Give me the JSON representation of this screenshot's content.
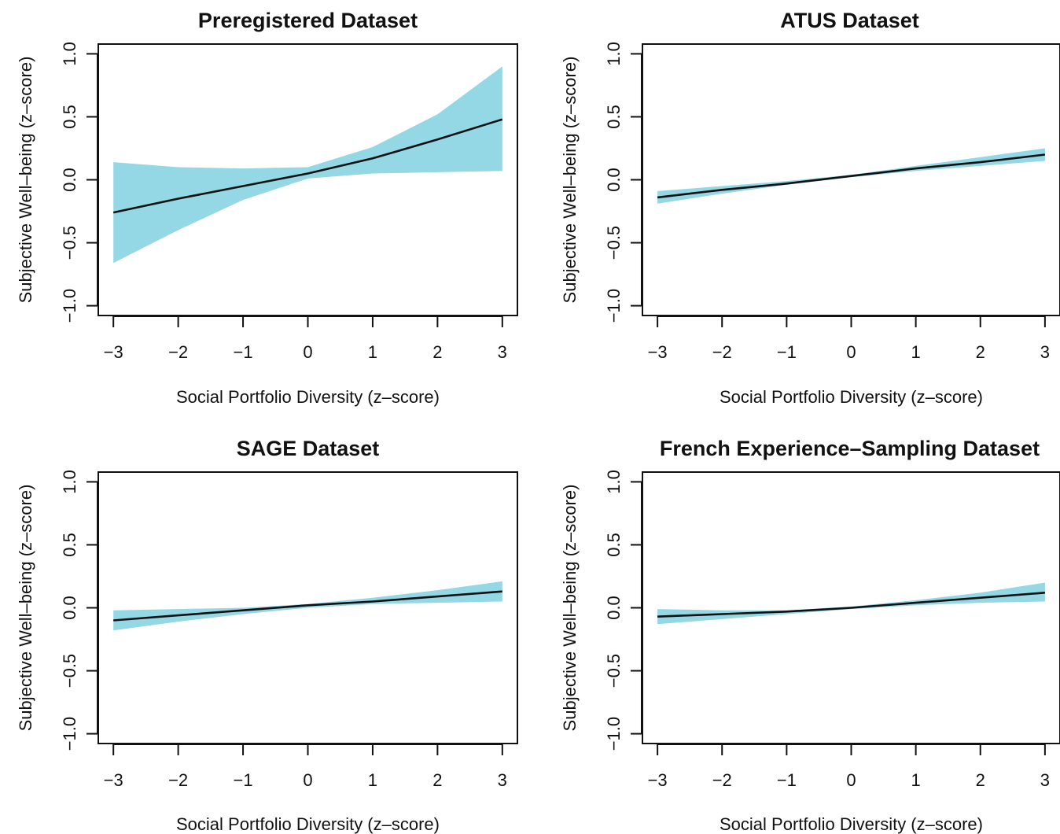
{
  "colors": {
    "band": "#94d7e5",
    "line": "#111111"
  },
  "chart_data": [
    {
      "type": "line",
      "title": "Preregistered Dataset",
      "xlabel": "Social Portfolio Diversity (z–score)",
      "ylabel": "Subjective Well–being (z–score)",
      "xlim": [
        -3,
        3
      ],
      "ylim": [
        -1,
        1
      ],
      "xticks": [
        -3,
        -2,
        -1,
        0,
        1,
        2,
        3
      ],
      "yticks": [
        -1.0,
        -0.5,
        0.0,
        0.5,
        1.0
      ],
      "xtick_labels": [
        "−3",
        "−2",
        "−1",
        "0",
        "1",
        "2",
        "3"
      ],
      "ytick_labels": [
        "−1.0",
        "−0.5",
        "0.0",
        "0.5",
        "1.0"
      ],
      "grid": false,
      "x": [
        -3,
        -2,
        -1,
        0,
        1,
        2,
        3
      ],
      "series": [
        {
          "y": [
            -0.26,
            -0.15,
            -0.05,
            0.05,
            0.17,
            0.32,
            0.48
          ],
          "lower": [
            -0.66,
            -0.4,
            -0.16,
            0.01,
            0.05,
            0.06,
            0.07
          ],
          "upper": [
            0.14,
            0.1,
            0.09,
            0.1,
            0.26,
            0.52,
            0.9
          ]
        }
      ]
    },
    {
      "type": "line",
      "title": "ATUS Dataset",
      "xlabel": "Social Portfolio Diversity (z–score)",
      "ylabel": "Subjective Well–being (z–score)",
      "xlim": [
        -3,
        3
      ],
      "ylim": [
        -1,
        1
      ],
      "xticks": [
        -3,
        -2,
        -1,
        0,
        1,
        2,
        3
      ],
      "yticks": [
        -1.0,
        -0.5,
        0.0,
        0.5,
        1.0
      ],
      "xtick_labels": [
        "−3",
        "−2",
        "−1",
        "0",
        "1",
        "2",
        "3"
      ],
      "ytick_labels": [
        "−1.0",
        "−0.5",
        "0.0",
        "0.5",
        "1.0"
      ],
      "grid": false,
      "x": [
        -3,
        -2,
        -1,
        0,
        1,
        2,
        3
      ],
      "series": [
        {
          "y": [
            -0.14,
            -0.08,
            -0.03,
            0.03,
            0.09,
            0.14,
            0.2
          ],
          "lower": [
            -0.19,
            -0.11,
            -0.04,
            0.02,
            0.07,
            0.11,
            0.15
          ],
          "upper": [
            -0.09,
            -0.05,
            -0.01,
            0.04,
            0.11,
            0.18,
            0.25
          ]
        }
      ]
    },
    {
      "type": "line",
      "title": "SAGE Dataset",
      "xlabel": "Social Portfolio Diversity (z–score)",
      "ylabel": "Subjective Well–being (z–score)",
      "xlim": [
        -3,
        3
      ],
      "ylim": [
        -1,
        1
      ],
      "xticks": [
        -3,
        -2,
        -1,
        0,
        1,
        2,
        3
      ],
      "yticks": [
        -1.0,
        -0.5,
        0.0,
        0.5,
        1.0
      ],
      "xtick_labels": [
        "−3",
        "−2",
        "−1",
        "0",
        "1",
        "2",
        "3"
      ],
      "ytick_labels": [
        "−1.0",
        "−0.5",
        "0.0",
        "0.5",
        "1.0"
      ],
      "grid": false,
      "x": [
        -3,
        -2,
        -1,
        0,
        1,
        2,
        3
      ],
      "series": [
        {
          "y": [
            -0.1,
            -0.06,
            -0.02,
            0.02,
            0.05,
            0.09,
            0.13
          ],
          "lower": [
            -0.18,
            -0.11,
            -0.05,
            0.0,
            0.03,
            0.04,
            0.05
          ],
          "upper": [
            -0.02,
            -0.01,
            0.0,
            0.03,
            0.08,
            0.14,
            0.21
          ]
        }
      ]
    },
    {
      "type": "line",
      "title": "French Experience–Sampling Dataset",
      "xlabel": "Social Portfolio Diversity (z–score)",
      "ylabel": "Subjective Well–being (z–score)",
      "xlim": [
        -3,
        3
      ],
      "ylim": [
        -1,
        1
      ],
      "xticks": [
        -3,
        -2,
        -1,
        0,
        1,
        2,
        3
      ],
      "yticks": [
        -1.0,
        -0.5,
        0.0,
        0.5,
        1.0
      ],
      "xtick_labels": [
        "−3",
        "−2",
        "−1",
        "0",
        "1",
        "2",
        "3"
      ],
      "ytick_labels": [
        "−1.0",
        "−0.5",
        "0.0",
        "0.5",
        "1.0"
      ],
      "grid": false,
      "x": [
        -3,
        -2,
        -1,
        0,
        1,
        2,
        3
      ],
      "series": [
        {
          "y": [
            -0.07,
            -0.05,
            -0.03,
            0.0,
            0.04,
            0.08,
            0.12
          ],
          "lower": [
            -0.13,
            -0.09,
            -0.05,
            -0.01,
            0.02,
            0.04,
            0.05
          ],
          "upper": [
            -0.01,
            -0.02,
            -0.02,
            0.01,
            0.06,
            0.12,
            0.2
          ]
        }
      ]
    }
  ]
}
